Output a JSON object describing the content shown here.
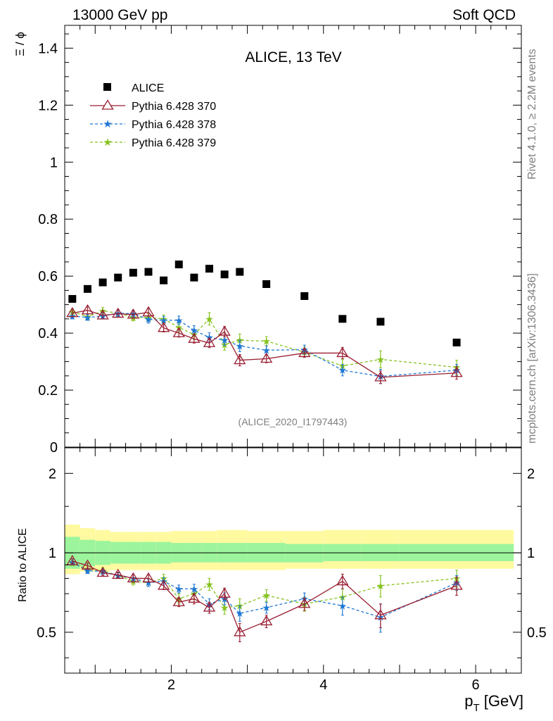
{
  "header": {
    "left_title": "13000 GeV pp",
    "right_title": "Soft QCD",
    "plot_title": "ALICE, 13 TeV",
    "analysis_id": "(ALICE_2020_I1797443)"
  },
  "side_text": {
    "rivet": "Rivet 4.1.0, ≥ 2.2M events",
    "mcplots": "mcplots.cern.ch [arXiv:1306.3436]"
  },
  "axes": {
    "top_ylabel": "Ξ / ϕ",
    "bottom_ylabel": "Ratio to ALICE",
    "xlabel": "p",
    "xlabel_sub": "T",
    "xlabel_unit": " [GeV]",
    "top_ytick_labels": [
      "0",
      "0.2",
      "0.4",
      "0.6",
      "0.8",
      "1",
      "1.2",
      "1.4"
    ],
    "bottom_ytick_labels": [
      "0.5",
      "1",
      "2"
    ],
    "xtick_labels": [
      "2",
      "4",
      "6"
    ]
  },
  "legend": {
    "items": [
      {
        "label": "ALICE",
        "marker": "square",
        "color": "#000000"
      },
      {
        "label": "Pythia 6.428 370",
        "marker": "triangle",
        "color": "#9a1f32"
      },
      {
        "label": "Pythia 6.428 378",
        "marker": "star",
        "color": "#1f77d4"
      },
      {
        "label": "Pythia 6.428 379",
        "marker": "star",
        "color": "#86c21f"
      }
    ]
  },
  "chart_data": [
    {
      "type": "scatter",
      "title": "ALICE, 13 TeV",
      "xlabel": "p_T [GeV]",
      "ylabel": "Ξ / ϕ",
      "xlim": [
        0.6,
        6.6
      ],
      "ylim": [
        0,
        1.48
      ],
      "x": [
        0.7,
        0.9,
        1.1,
        1.3,
        1.5,
        1.7,
        1.9,
        2.1,
        2.3,
        2.5,
        2.7,
        2.9,
        3.25,
        3.75,
        4.25,
        4.75,
        5.75
      ],
      "series": [
        {
          "name": "ALICE",
          "values": [
            0.52,
            0.555,
            0.578,
            0.595,
            0.612,
            0.615,
            0.585,
            0.641,
            0.595,
            0.626,
            0.606,
            0.615,
            0.572,
            0.53,
            0.45,
            0.44,
            0.367
          ]
        },
        {
          "name": "Pythia 6.428 370",
          "values": [
            0.47,
            0.48,
            0.462,
            0.468,
            0.465,
            0.473,
            0.418,
            0.4,
            0.38,
            0.365,
            0.405,
            0.305,
            0.31,
            0.33,
            0.33,
            0.245,
            0.26
          ],
          "errors": [
            0.012,
            0.012,
            0.012,
            0.012,
            0.013,
            0.014,
            0.014,
            0.014,
            0.015,
            0.016,
            0.018,
            0.02,
            0.014,
            0.015,
            0.02,
            0.022,
            0.022
          ]
        },
        {
          "name": "Pythia 6.428 378",
          "values": [
            0.46,
            0.455,
            0.46,
            0.47,
            0.468,
            0.448,
            0.445,
            0.445,
            0.41,
            0.385,
            0.375,
            0.355,
            0.34,
            0.342,
            0.27,
            0.248,
            0.27
          ],
          "errors": [
            0.01,
            0.01,
            0.01,
            0.012,
            0.012,
            0.013,
            0.014,
            0.015,
            0.016,
            0.016,
            0.018,
            0.02,
            0.015,
            0.016,
            0.02,
            0.025,
            0.02
          ]
        },
        {
          "name": "Pythia 6.428 379",
          "values": [
            0.475,
            0.458,
            0.478,
            0.47,
            0.455,
            0.455,
            0.45,
            0.42,
            0.395,
            0.45,
            0.36,
            0.375,
            0.372,
            0.333,
            0.285,
            0.308,
            0.28
          ],
          "errors": [
            0.01,
            0.01,
            0.012,
            0.012,
            0.012,
            0.013,
            0.014,
            0.015,
            0.018,
            0.022,
            0.02,
            0.022,
            0.016,
            0.018,
            0.022,
            0.03,
            0.025
          ]
        }
      ]
    },
    {
      "type": "scatter",
      "ylabel": "Ratio to ALICE",
      "xlabel": "p_T [GeV]",
      "xlim": [
        0.6,
        6.6
      ],
      "ylim": [
        0.35,
        2.5
      ],
      "yscale": "log",
      "x": [
        0.7,
        0.9,
        1.1,
        1.3,
        1.5,
        1.7,
        1.9,
        2.1,
        2.3,
        2.5,
        2.7,
        2.9,
        3.25,
        3.75,
        4.25,
        4.75,
        5.75
      ],
      "bands": {
        "bin_edges": [
          0.6,
          0.8,
          1.0,
          1.2,
          1.4,
          1.6,
          1.8,
          2.0,
          2.2,
          2.4,
          2.6,
          2.8,
          3.0,
          3.5,
          4.0,
          4.5,
          5.0,
          6.5
        ],
        "inner_low": [
          0.87,
          0.89,
          0.9,
          0.91,
          0.91,
          0.91,
          0.91,
          0.92,
          0.92,
          0.92,
          0.92,
          0.92,
          0.92,
          0.92,
          0.93,
          0.93,
          0.93
        ],
        "inner_high": [
          1.15,
          1.12,
          1.11,
          1.1,
          1.1,
          1.1,
          1.1,
          1.09,
          1.09,
          1.09,
          1.09,
          1.09,
          1.09,
          1.08,
          1.08,
          1.08,
          1.08
        ],
        "outer_low": [
          0.83,
          0.85,
          0.85,
          0.86,
          0.86,
          0.86,
          0.86,
          0.86,
          0.86,
          0.86,
          0.86,
          0.86,
          0.86,
          0.87,
          0.87,
          0.87,
          0.87
        ],
        "outer_high": [
          1.28,
          1.24,
          1.22,
          1.2,
          1.2,
          1.2,
          1.2,
          1.21,
          1.21,
          1.21,
          1.22,
          1.22,
          1.21,
          1.21,
          1.22,
          1.22,
          1.22
        ]
      },
      "series": [
        {
          "name": "Pythia 6.428 370",
          "values": [
            0.93,
            0.895,
            0.84,
            0.825,
            0.8,
            0.8,
            0.75,
            0.65,
            0.67,
            0.62,
            0.7,
            0.5,
            0.55,
            0.64,
            0.78,
            0.58,
            0.75
          ],
          "errors": [
            0.02,
            0.02,
            0.02,
            0.02,
            0.025,
            0.025,
            0.025,
            0.025,
            0.03,
            0.03,
            0.035,
            0.04,
            0.03,
            0.035,
            0.05,
            0.06,
            0.06
          ]
        },
        {
          "name": "Pythia 6.428 378",
          "values": [
            0.92,
            0.855,
            0.85,
            0.82,
            0.8,
            0.77,
            0.78,
            0.73,
            0.73,
            0.64,
            0.67,
            0.59,
            0.62,
            0.67,
            0.63,
            0.57,
            0.77
          ],
          "errors": [
            0.02,
            0.02,
            0.02,
            0.02,
            0.025,
            0.025,
            0.025,
            0.025,
            0.03,
            0.03,
            0.035,
            0.04,
            0.03,
            0.035,
            0.05,
            0.07,
            0.05
          ]
        },
        {
          "name": "Pythia 6.428 379",
          "values": [
            0.915,
            0.87,
            0.855,
            0.82,
            0.78,
            0.77,
            0.8,
            0.67,
            0.7,
            0.76,
            0.62,
            0.63,
            0.69,
            0.64,
            0.68,
            0.75,
            0.8
          ],
          "errors": [
            0.02,
            0.02,
            0.025,
            0.02,
            0.025,
            0.025,
            0.03,
            0.03,
            0.035,
            0.04,
            0.035,
            0.04,
            0.035,
            0.04,
            0.05,
            0.07,
            0.06
          ]
        }
      ]
    }
  ]
}
